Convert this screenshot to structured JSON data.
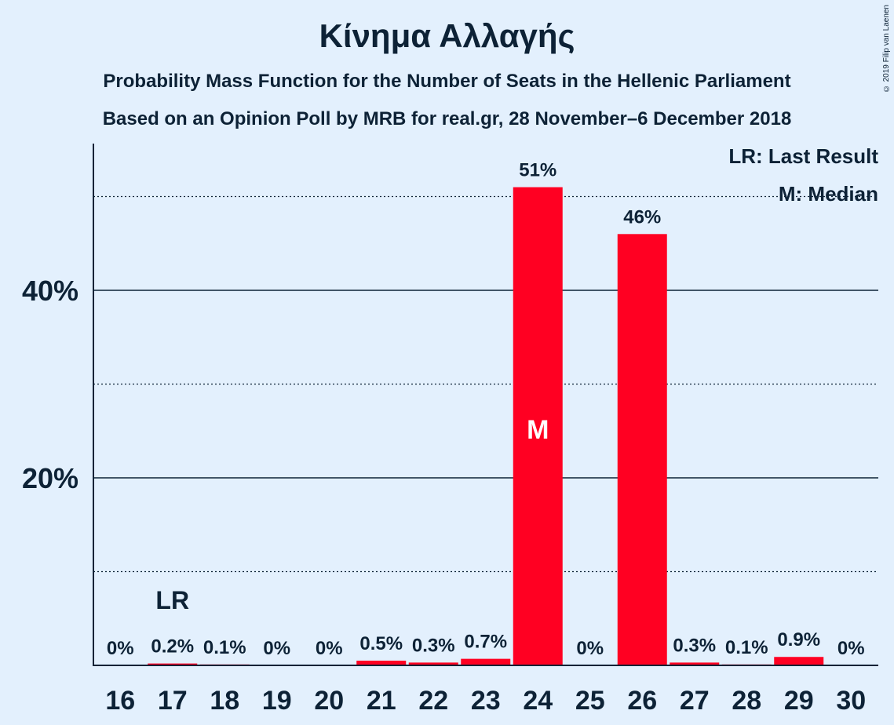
{
  "chart_data": {
    "type": "bar",
    "title": "Κίνημα Αλλαγής",
    "subtitle_1": "Probability Mass Function for the Number of Seats in the Hellenic Parliament",
    "subtitle_2": "Based on an Opinion Poll by MRB for real.gr, 28 November–6 December 2018",
    "copyright": "© 2019 Filip van Laenen",
    "categories": [
      "16",
      "17",
      "18",
      "19",
      "20",
      "21",
      "22",
      "23",
      "24",
      "25",
      "26",
      "27",
      "28",
      "29",
      "30"
    ],
    "values": [
      0,
      0.2,
      0.1,
      0,
      0,
      0.5,
      0.3,
      0.7,
      51,
      0,
      46,
      0.3,
      0.1,
      0.9,
      0
    ],
    "value_labels": [
      "0%",
      "0.2%",
      "0.1%",
      "0%",
      "0%",
      "0.5%",
      "0.3%",
      "0.7%",
      "51%",
      "0%",
      "46%",
      "0.3%",
      "0.1%",
      "0.9%",
      "0%"
    ],
    "ylim": [
      0,
      55
    ],
    "y_tick_labels": [
      {
        "value": 20,
        "label": "20%"
      },
      {
        "value": 40,
        "label": "40%"
      }
    ],
    "gridlines_solid": [
      20,
      40
    ],
    "gridlines_dotted": [
      10,
      30,
      50
    ],
    "last_result_category": "17",
    "last_result_marker": "LR",
    "median_category": "24",
    "median_marker": "M",
    "legend": {
      "last_result": "LR: Last Result",
      "median": "M: Median"
    },
    "bar_color": "#ff0022",
    "grid": true,
    "legend_position": "top-right"
  }
}
